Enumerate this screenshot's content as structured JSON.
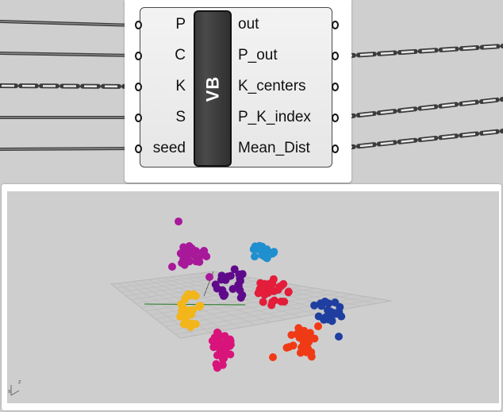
{
  "canvas": {
    "background": "#cfcfcf"
  },
  "component": {
    "title": "VB",
    "inputs": [
      {
        "name": "P"
      },
      {
        "name": "C"
      },
      {
        "name": "K"
      },
      {
        "name": "S"
      },
      {
        "name": "seed"
      }
    ],
    "outputs": [
      {
        "name": "out"
      },
      {
        "name": "P_out"
      },
      {
        "name": "K_centers"
      },
      {
        "name": "P_K_index"
      },
      {
        "name": "Mean_Dist"
      }
    ]
  },
  "viewport": {
    "background": "#cfcecf",
    "grid_color": "#bdbdbd",
    "x_axis_color": "#4b4b4b",
    "y_axis_color": "#1f7a1f",
    "axis_labels": {
      "x": "x",
      "z": "z"
    },
    "clusters": [
      {
        "name": "magenta",
        "color": "#a8199a"
      },
      {
        "name": "purple",
        "color": "#5f0a8a"
      },
      {
        "name": "light-blue",
        "color": "#1f8fcf"
      },
      {
        "name": "red",
        "color": "#e31d3a"
      },
      {
        "name": "navy",
        "color": "#1f3ea0"
      },
      {
        "name": "yellow",
        "color": "#f2b51a"
      },
      {
        "name": "pink",
        "color": "#d8147a"
      },
      {
        "name": "orange-red",
        "color": "#f03a16"
      }
    ]
  }
}
